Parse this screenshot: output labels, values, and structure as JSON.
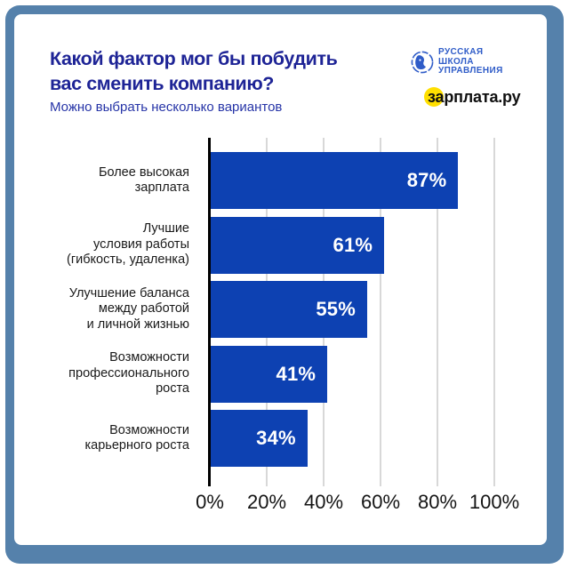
{
  "header": {
    "title": "Какой фактор мог бы побудить\nвас сменить компанию?",
    "subtitle": "Можно выбрать несколько вариантов"
  },
  "logos": {
    "rshu": {
      "text": "РУССКАЯ\nШКОЛА\nУПРАВЛЕНИЯ",
      "color": "#2f5cc8"
    },
    "zarplata": {
      "text": "зарплата.ру",
      "highlight_color": "#ffdf00",
      "text_color": "#0f0f0f"
    }
  },
  "colors": {
    "frame": "#5581ab",
    "card": "#ffffff",
    "title": "#1e2496",
    "subtitle": "#2634a7",
    "bar": "#0d41b2",
    "gridline": "#d8d8d8",
    "axis": "#000000"
  },
  "chart_data": {
    "type": "bar",
    "orientation": "horizontal",
    "title": "Какой фактор мог бы побудить вас сменить компанию?",
    "subtitle": "Можно выбрать несколько вариантов",
    "categories": [
      "Более высокая зарплата",
      "Лучшие условия работы (гибкость, удаленка)",
      "Улучшение баланса между работой и личной жизнью",
      "Возможности профессионального роста",
      "Возможности карьерного роста"
    ],
    "categories_multiline": [
      "Более высокая\nзарплата",
      "Лучшие\nусловия работы\n(гибкость, удаленка)",
      "Улучшение баланса\nмежду работой\nи личной жизнью",
      "Возможности\nпрофессионального\nроста",
      "Возможности\nкарьерного роста"
    ],
    "values": [
      87,
      61,
      55,
      41,
      34
    ],
    "value_labels": [
      "87%",
      "61%",
      "55%",
      "41%",
      "34%"
    ],
    "x_tick_values": [
      0,
      20,
      40,
      60,
      80,
      100
    ],
    "x_ticks": [
      "0%",
      "20%",
      "40%",
      "60%",
      "80%",
      "100%"
    ],
    "xlim": [
      0,
      100
    ],
    "grid": true,
    "legend": false,
    "bar_color": "#0d41b2",
    "value_label_color": "#ffffff"
  }
}
